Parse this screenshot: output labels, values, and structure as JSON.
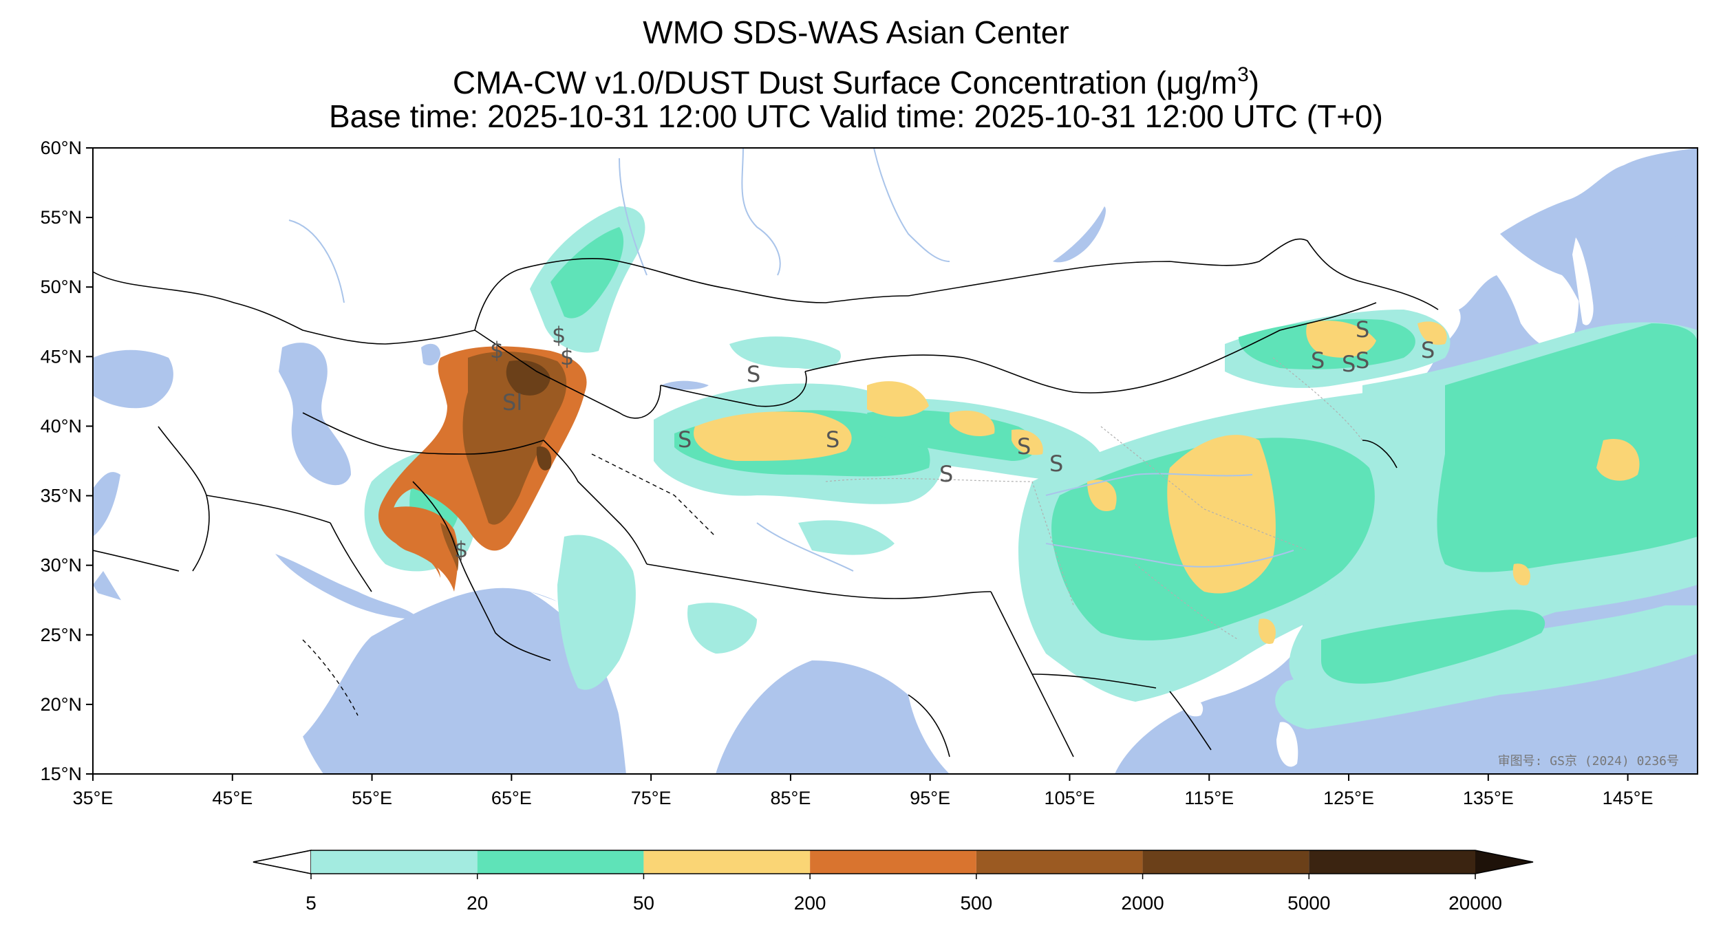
{
  "titles": {
    "line1": "WMO SDS-WAS Asian Center",
    "line2_main": "CMA-CW v1.0/DUST Dust Surface Concentration (μg/m",
    "line2_sup": "3",
    "line2_end": ")",
    "line3": "Base time: 2025-10-31 12:00 UTC Valid time: 2025-10-31 12:00 UTC (T+0)"
  },
  "map": {
    "lon_range": [
      35,
      150
    ],
    "lat_range": [
      15,
      60
    ],
    "lat_ticks": [
      "60°N",
      "55°N",
      "50°N",
      "45°N",
      "40°N",
      "35°N",
      "30°N",
      "25°N",
      "20°N",
      "15°N"
    ],
    "lon_ticks": [
      "35°E",
      "45°E",
      "55°E",
      "65°E",
      "75°E",
      "85°E",
      "95°E",
      "105°E",
      "115°E",
      "125°E",
      "135°E",
      "145°E"
    ],
    "stamp": "审图号: GS京 (2024) 0236号",
    "colors": {
      "ocean": "#aec5ec",
      "land": "#ffffff",
      "border": "#000000",
      "river": "#a9c4ea"
    }
  },
  "colorbar": {
    "levels": [
      "5",
      "20",
      "50",
      "200",
      "500",
      "2000",
      "5000",
      "20000"
    ],
    "colors": [
      "#a3ebe0",
      "#5fe3b8",
      "#fad575",
      "#d9742f",
      "#9b5a22",
      "#6b4019",
      "#3b2411",
      "#1e1209"
    ],
    "under_color": "#ffffff",
    "over_color": "#1e1209"
  }
}
